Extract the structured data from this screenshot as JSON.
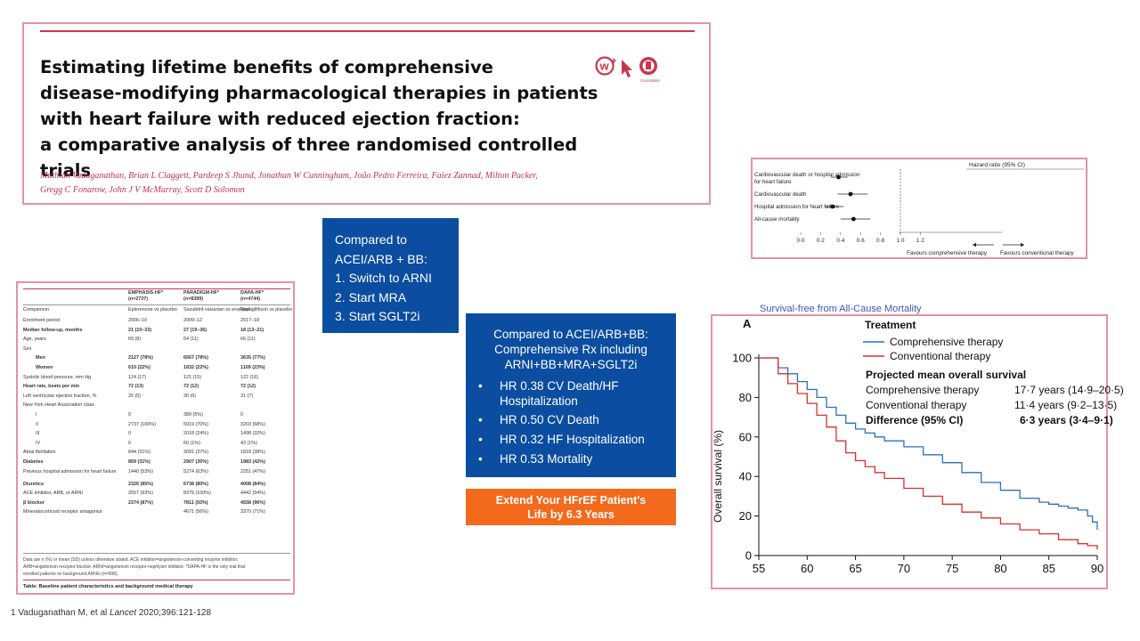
{
  "title_card": {
    "title_lines": [
      "Estimating lifetime benefits of comprehensive",
      "disease-modifying pharmacological therapies in patients",
      "with heart failure with reduced ejection fraction:",
      "a comparative analysis of three randomised controlled trials"
    ],
    "authors_line1": "Muthiah Vaduganathan, Brian L Claggett, Pardeep S Jhund, Jonathan W Cunningham, João Pedro Ferreira, Faiez Zannad, Milton Packer,",
    "authors_line2": "Gregg C Fonarow, John J V McMurray, Scott D Solomon",
    "crossmark_label": "CrossMark",
    "accent_color": "#c8374f"
  },
  "forest_plot": {
    "header": "Hazard ratio (95% CI)",
    "rows": [
      {
        "label": "Cardiovascular death or hospital admission",
        "label2": "for heart failure",
        "hr": 0.38,
        "lo": 0.3,
        "hi": 0.47
      },
      {
        "label": "Cardiovascular death",
        "label2": "",
        "hr": 0.5,
        "lo": 0.37,
        "hi": 0.67
      },
      {
        "label": "Hospital admission for heart failure",
        "label2": "",
        "hr": 0.32,
        "lo": 0.24,
        "hi": 0.43
      },
      {
        "label": "All-cause mortality",
        "label2": "",
        "hr": 0.53,
        "lo": 0.4,
        "hi": 0.7
      }
    ],
    "ticks": [
      "0·0",
      "0·2",
      "0·4",
      "0·6",
      "0·8",
      "1·0",
      "1·2"
    ],
    "favours_left": "Favours comprehensive therapy",
    "favours_right": "Favours conventional therapy"
  },
  "baseline_table": {
    "headers": [
      {
        "name": "EMPHASIS-HF*",
        "n": "(n=2737)"
      },
      {
        "name": "PARADIGM-HF*",
        "n": "(n=8399)"
      },
      {
        "name": "DAPA-HF*",
        "n": "(n=4744)"
      }
    ],
    "rows": [
      [
        "Comparison",
        "Eplerenone vs placebo",
        "Sacubitril-valsartan vs enalapril",
        "Dapagliflozin vs placebo"
      ],
      [
        "Enrolment period",
        "2006–10",
        "2009–12",
        "2017–18"
      ],
      [
        "Median follow-up, months",
        "21 (10–33)",
        "27 (19–36)",
        "18 (13–21)"
      ],
      [
        "Age, years",
        "69 (8)",
        "64 (11)",
        "66 (11)"
      ],
      [
        "Sex",
        "",
        "",
        ""
      ],
      [
        "Men",
        "2127 (78%)",
        "6567 (78%)",
        "3635 (77%)"
      ],
      [
        "Women",
        "610 (22%)",
        "1832 (22%)",
        "1109 (23%)"
      ],
      [
        "Systolic blood pressure, mm Hg",
        "124 (17)",
        "121 (15)",
        "122 (16)"
      ],
      [
        "Heart rate, beats per min",
        "72 (13)",
        "72 (12)",
        "72 (12)"
      ],
      [
        "Left ventricular ejection fraction, %",
        "26 (5)",
        "30 (6)",
        "31 (7)"
      ],
      [
        "New York Heart Association class",
        "",
        "",
        ""
      ],
      [
        "I",
        "0",
        "389 (5%)",
        "0"
      ],
      [
        "II",
        "2737 (100%)",
        "5919 (70%)",
        "3203 (68%)"
      ],
      [
        "III",
        "0",
        "2018 (24%)",
        "1498 (32%)"
      ],
      [
        "IV",
        "0",
        "60 (1%)",
        "43 (1%)"
      ],
      [
        "Atrial fibrillation",
        "844 (31%)",
        "3091 (37%)",
        "1818 (38%)"
      ],
      [
        "Diabetes",
        "859 (31%)",
        "2907 (35%)",
        "1983 (42%)"
      ],
      [
        "Previous hospital admission for heart failure",
        "1440 (53%)",
        "5274 (63%)",
        "2251 (47%)"
      ],
      [
        "Diuretics",
        "2326 (85%)",
        "6738 (80%)",
        "4008 (84%)"
      ],
      [
        "ACE inhibitor, ARB, or ARNI",
        "2557 (93%)",
        "8379 (100%)",
        "4442 (94%)"
      ],
      [
        "β blocker",
        "2374 (87%)",
        "7811 (93%)",
        "4558 (96%)"
      ],
      [
        "Mineralocorticoid receptor antagonist",
        "",
        "4671 (56%)",
        "3370 (71%)"
      ]
    ],
    "footnote1": "Data are n (%) or mean (SD) unless otherwise stated. ACE inhibitor=angiotensin-converting enzyme inhibitor.",
    "footnote2": "ARB=angiotensin receptor blocker. ARNI=angiotensin receptor-neprilysin inhibitor. *DAPA-HF is the only trial that",
    "footnote3": "enrolled patients on background ARNIs (n=508).",
    "caption": "Table: Baseline patient characteristics and background medical therapy"
  },
  "box1": {
    "lines": [
      "Compared to",
      "ACEI/ARB + BB:",
      "1. Switch to ARNI",
      "2. Start MRA",
      "3. Start SGLT2i"
    ]
  },
  "box2": {
    "head_lines": [
      "Compared to ACEI/ARB+BB:",
      "Comprehensive Rx including",
      "ARNI+BB+MRA+SGLT2i"
    ],
    "bullets": [
      {
        "line1": "HR 0.38 CV Death/HF",
        "line2": "Hospitalization"
      },
      {
        "line1": "HR 0.50 CV Death",
        "line2": ""
      },
      {
        "line1": "HR 0.32 HF Hospitalization",
        "line2": ""
      },
      {
        "line1": "HR 0.53 Mortality",
        "line2": ""
      }
    ],
    "bullet_glyph": "•"
  },
  "orange_box": {
    "line1": "Extend Your HFrEF Patient's",
    "line2": "Life by 6.3 Years",
    "color": "#f36a1d"
  },
  "survival_caption": "Survival-free from All-Cause Mortality",
  "footnote": {
    "prefix": "1  Vaduganathan M, et al",
    "journal": "Lancet",
    "suffix": "2020;396:121-128"
  },
  "chart_data": {
    "type": "line",
    "panel_label": "A",
    "xlabel": "",
    "ylabel": "Overall survival (%)",
    "xlim": [
      55,
      90
    ],
    "ylim": [
      0,
      100
    ],
    "xticks": [
      55,
      60,
      65,
      70,
      75,
      80,
      85,
      90
    ],
    "yticks": [
      0,
      20,
      40,
      60,
      80,
      100
    ],
    "legend_title": "Treatment",
    "series": [
      {
        "name": "Comprehensive therapy",
        "color": "#2e6fbf",
        "x": [
          55,
          56.5,
          57,
          58,
          59,
          60,
          61,
          62,
          63,
          64,
          65,
          66,
          67,
          68,
          70,
          72,
          74,
          76,
          78,
          80,
          82,
          84,
          85,
          86,
          87,
          88,
          89,
          89.5,
          90
        ],
        "y": [
          100,
          100,
          95,
          92,
          88,
          84,
          80,
          75,
          71,
          67,
          64,
          62,
          60,
          58,
          55,
          51,
          47,
          42,
          37,
          33,
          29,
          27,
          26,
          25,
          24,
          23,
          20,
          17,
          13
        ]
      },
      {
        "name": "Conventional therapy",
        "color": "#d9302e",
        "x": [
          55,
          56.5,
          57,
          58,
          59,
          60,
          61,
          62,
          63,
          64,
          65,
          66,
          67,
          68,
          70,
          72,
          74,
          76,
          78,
          80,
          82,
          84,
          86,
          88,
          89,
          90
        ],
        "y": [
          100,
          100,
          92,
          87,
          82,
          77,
          71,
          65,
          58,
          52,
          48,
          45,
          42,
          39,
          34,
          30,
          26,
          22,
          19,
          16,
          13,
          11,
          8,
          6,
          5,
          3
        ]
      }
    ],
    "annotations": {
      "heading": "Projected mean overall survival",
      "rows": [
        {
          "label": "Comprehensive therapy",
          "value": "17·7 years (14·9–20·5)"
        },
        {
          "label": "Conventional therapy",
          "value": "11·4 years (9·2–13·5)"
        },
        {
          "label": "Difference (95% CI)",
          "value": "6·3 years (3·4–9·1)"
        }
      ]
    }
  }
}
